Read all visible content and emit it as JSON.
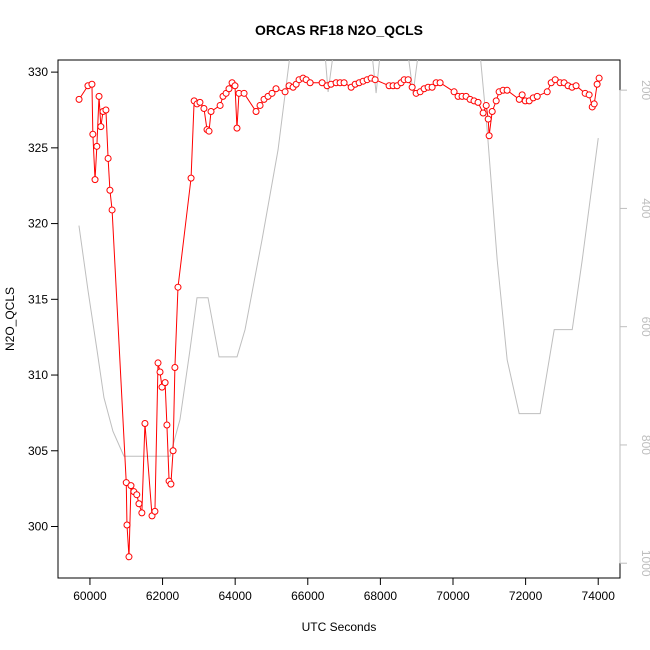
{
  "chart_data": {
    "type": "line",
    "title": "ORCAS RF18 N2O_QCLS",
    "x_label": "UTC Seconds",
    "y_label": "N2O_QCLS",
    "xlim": [
      59120,
      74600
    ],
    "xticks": [
      60000,
      62000,
      64000,
      66000,
      68000,
      70000,
      72000,
      74000
    ],
    "ylim": [
      296.6,
      330.8
    ],
    "yticks": [
      300,
      305,
      310,
      315,
      320,
      325,
      330
    ],
    "y2lim": [
      1025,
      149
    ],
    "y2ticks": [
      200,
      400,
      600,
      800,
      1000
    ],
    "series": [
      {
        "color": "#ff0000",
        "marker": "circle",
        "x": [
          59700,
          59945,
          60055,
          60080,
          60140,
          60190,
          60250,
          60300,
          60360,
          60440,
          60500,
          60550,
          60610,
          61000,
          61020,
          61075,
          61130,
          61210,
          61290,
          61350,
          61430,
          61515,
          61710,
          61790,
          61875,
          61930,
          61985,
          62070,
          62120,
          62180,
          62230,
          62290,
          62340,
          62425,
          62785,
          62870,
          62950,
          63030,
          63140,
          63225,
          63280,
          63335,
          63585,
          63665,
          63750,
          63830,
          63915,
          63995,
          64050,
          64105,
          64245,
          64575,
          64685,
          64795,
          64905,
          65015,
          65125,
          65375,
          65485,
          65595,
          65680,
          65760,
          65870,
          65955,
          66065,
          66395,
          66530,
          66640,
          66780,
          66890,
          67000,
          67195,
          67305,
          67415,
          67525,
          67635,
          67745,
          67855,
          68240,
          68350,
          68460,
          68570,
          68655,
          68765,
          68875,
          68985,
          69095,
          69205,
          69315,
          69425,
          69535,
          69645,
          70030,
          70140,
          70250,
          70360,
          70470,
          70580,
          70690,
          70830,
          70915,
          70970,
          70995,
          71080,
          71190,
          71270,
          71380,
          71490,
          71825,
          71905,
          71990,
          72100,
          72210,
          72320,
          72595,
          72705,
          72815,
          72950,
          73060,
          73170,
          73280,
          73390,
          73640,
          73750,
          73835,
          73890,
          73970,
          74025
        ],
        "values": [
          328.2,
          329.1,
          329.2,
          325.9,
          322.9,
          325.1,
          328.4,
          326.4,
          327.4,
          327.5,
          324.3,
          322.2,
          320.9,
          302.9,
          300.1,
          298.0,
          302.7,
          302.3,
          302.1,
          301.5,
          300.9,
          306.8,
          300.7,
          301.0,
          310.8,
          310.2,
          309.2,
          309.5,
          306.7,
          303.0,
          302.8,
          305.0,
          310.5,
          315.8,
          323.0,
          328.1,
          327.9,
          328.0,
          327.6,
          326.2,
          326.1,
          327.4,
          327.8,
          328.4,
          328.6,
          328.9,
          329.3,
          329.1,
          326.3,
          328.6,
          328.6,
          327.4,
          327.8,
          328.2,
          328.4,
          328.6,
          328.9,
          328.7,
          329.1,
          329.0,
          329.2,
          329.5,
          329.6,
          329.5,
          329.3,
          329.3,
          329.1,
          329.2,
          329.3,
          329.3,
          329.3,
          329.0,
          329.2,
          329.3,
          329.4,
          329.5,
          329.6,
          329.5,
          329.1,
          329.1,
          329.1,
          329.3,
          329.5,
          329.5,
          329.0,
          328.6,
          328.7,
          328.9,
          329.0,
          329.0,
          329.3,
          329.3,
          328.7,
          328.4,
          328.4,
          328.4,
          328.2,
          328.1,
          328.0,
          327.3,
          327.8,
          326.9,
          325.8,
          327.4,
          328.1,
          328.7,
          328.8,
          328.8,
          328.2,
          328.5,
          328.1,
          328.1,
          328.3,
          328.4,
          328.7,
          329.3,
          329.5,
          329.3,
          329.3,
          329.1,
          329.0,
          329.1,
          328.6,
          328.5,
          327.7,
          327.9,
          329.2,
          329.6
        ]
      },
      {
        "color": "#bebebe",
        "axis": "y2",
        "x": [
          59697,
          59945,
          60193,
          60386,
          60634,
          60937,
          62205,
          62480,
          62756,
          62949,
          63252,
          63555,
          64051,
          64272,
          64740,
          65181,
          65512,
          66477,
          66560,
          66697,
          67772,
          67882,
          67992,
          68764,
          68902,
          69040,
          70748,
          70941,
          71217,
          71492,
          71823,
          72402,
          72788,
          73284,
          73560,
          74001
        ],
        "values": [
          429,
          538,
          639,
          720,
          777,
          819,
          819,
          757,
          639,
          551,
          551,
          651,
          651,
          605,
          453,
          301,
          140,
          140,
          203,
          140,
          140,
          205,
          140,
          140,
          205,
          140,
          140,
          267,
          487,
          656,
          747,
          747,
          605,
          605,
          487,
          281
        ]
      }
    ]
  }
}
